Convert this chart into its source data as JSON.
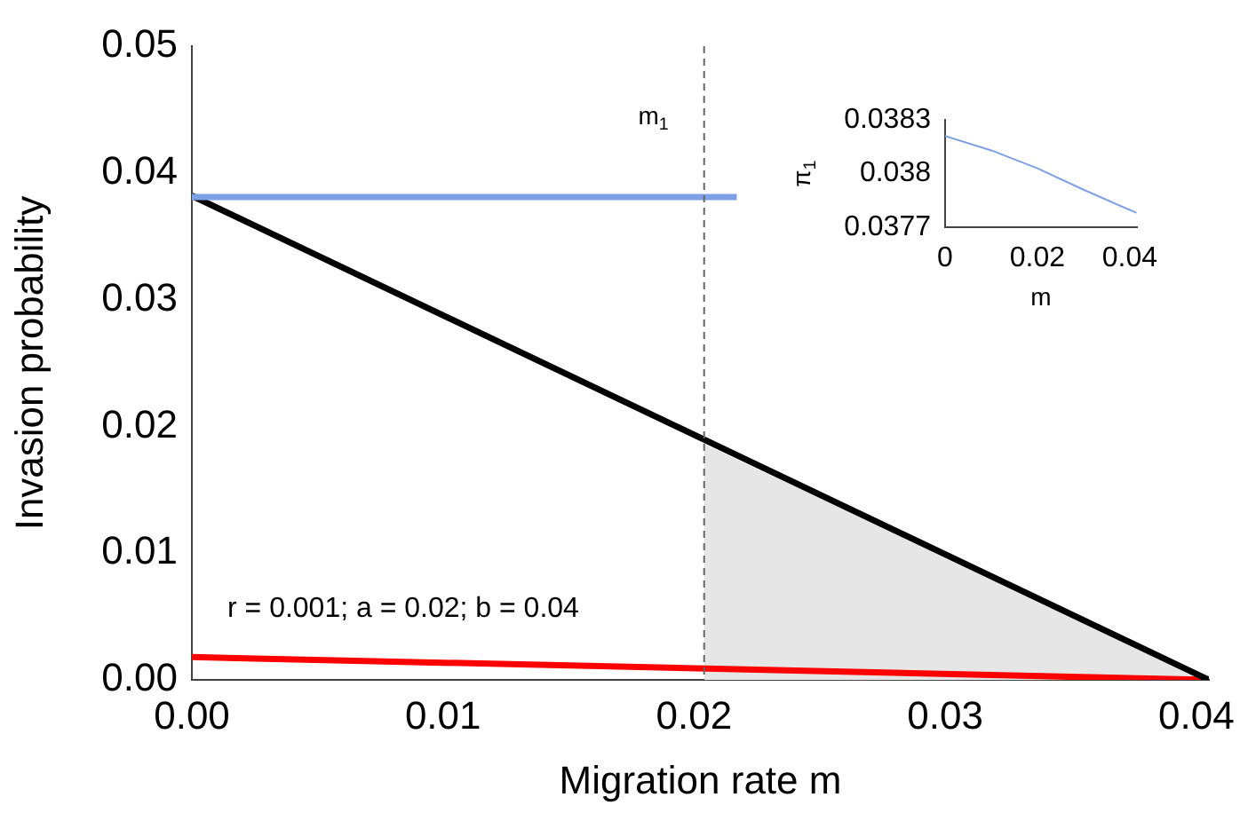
{
  "chart_data": [
    {
      "type": "line",
      "xlabel": "Migration rate m",
      "ylabel": "Invasion probability",
      "xlim": [
        0,
        0.0405
      ],
      "ylim": [
        0,
        0.05
      ],
      "xticks": [
        {
          "value": 0,
          "label": "0.00"
        },
        0.01,
        0.02,
        0.03,
        0.04
      ],
      "yticks": [
        {
          "value": 0,
          "label": "0.00"
        },
        0.01,
        0.02,
        0.03,
        0.04,
        0.05
      ],
      "series": [
        {
          "type": "area",
          "color": "#e6e6e6",
          "x": [
            0.0204,
            0.0405
          ],
          "values": [
            0.0186,
            0
          ]
        },
        {
          "type": "line",
          "color": "#7ea1e6",
          "x": [
            0,
            0.0217
          ],
          "values": [
            0.0381,
            0.0381
          ]
        },
        {
          "type": "line",
          "color": "#000000",
          "x": [
            0,
            0.0405
          ],
          "values": [
            0.0382,
            0
          ]
        },
        {
          "type": "line",
          "color": "#ff0000",
          "x": [
            0,
            0.0405
          ],
          "values": [
            0.0018,
            0
          ]
        }
      ],
      "ref_lines": [
        {
          "axis": "x",
          "value": 0.0204,
          "label": "m$_{1}$",
          "line_style": "dashed",
          "color": "#666666"
        }
      ],
      "annotations": [
        "r = 0.001; a = 0.02; b = 0.04"
      ]
    },
    {
      "type": "line",
      "xlabel": "m",
      "ylabel": "π$_{1}$",
      "xlim": [
        0,
        0.0415
      ],
      "ylim": [
        0.0377,
        0.0383
      ],
      "xticks": [
        0,
        0.02,
        0.04
      ],
      "yticks": [
        0.0377,
        0.038,
        0.0383
      ],
      "series": [
        {
          "type": "line",
          "color": "#7ea1e6",
          "x": [
            0,
            0.01,
            0.02,
            0.03,
            0.0415
          ],
          "values": [
            0.03821,
            0.03813,
            0.03803,
            0.03791,
            0.03778
          ]
        }
      ]
    }
  ]
}
